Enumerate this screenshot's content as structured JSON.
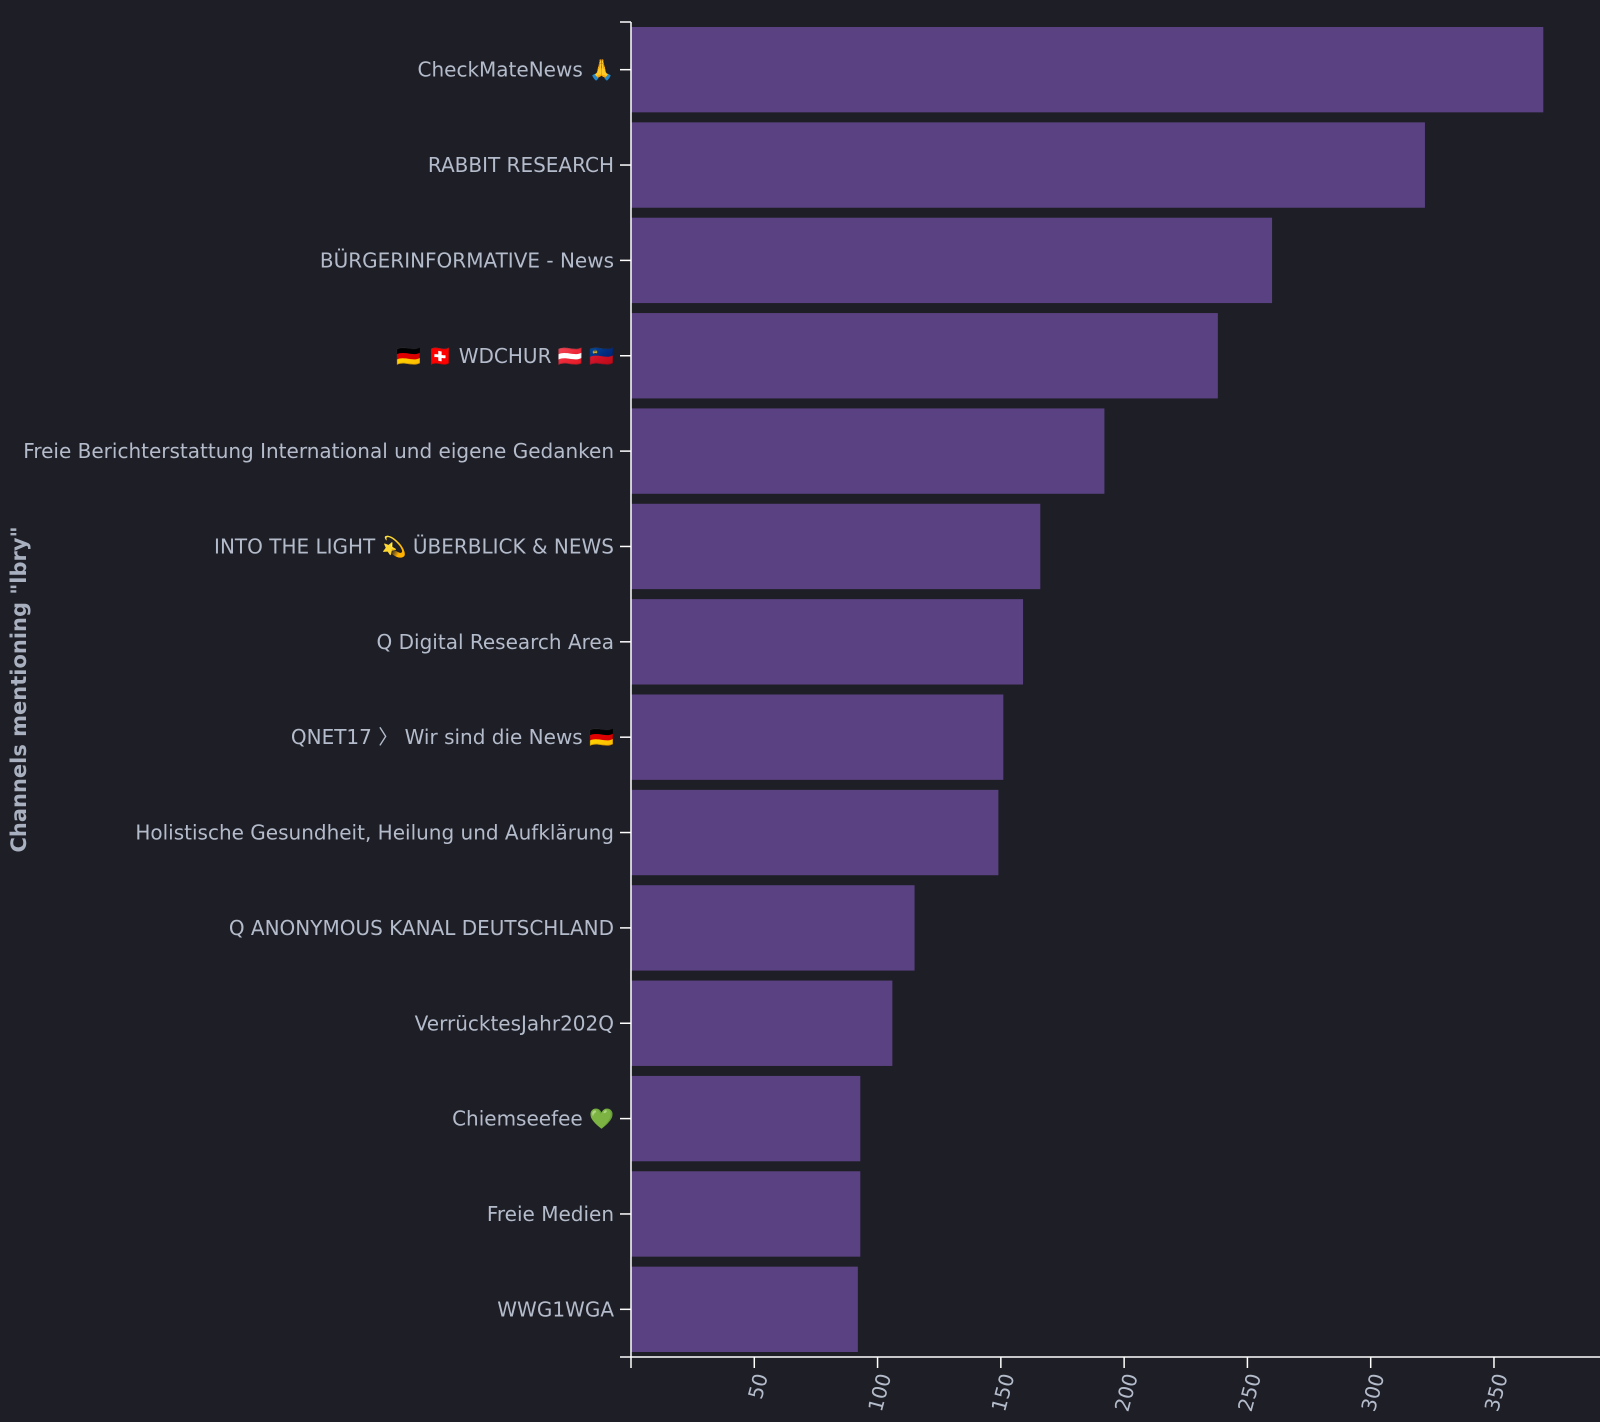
{
  "chart_data": {
    "type": "bar",
    "orientation": "horizontal",
    "categories": [
      "CheckMateNews 🙏",
      "RABBIT RESEARCH",
      "BÜRGERINFORMATIVE - News",
      "🇩🇪 🇨🇭 WDCHUR 🇦🇹 🇱🇮",
      "Freie Berichterstattung International und eigene Gedanken",
      "INTO THE LIGHT 💫 ÜBERBLICK & NEWS",
      "Q Digital Research Area",
      "QNET17 〉 Wir sind die News 🇩🇪",
      "Holistische Gesundheit, Heilung und Aufklärung",
      "Q ANONYMOUS KANAL DEUTSCHLAND",
      "VerrücktesJahr202Q",
      "Chiemseefee 💚",
      "Freie Medien",
      "WWG1WGA"
    ],
    "values": [
      370,
      322,
      260,
      238,
      192,
      166,
      159,
      151,
      149,
      115,
      106,
      93,
      93,
      92
    ],
    "xlabel": "",
    "ylabel": "Channels mentioning \"lbry\"",
    "xlim": [
      0,
      393
    ],
    "xticks": [
      50,
      100,
      150,
      200,
      250,
      300,
      350
    ],
    "grid": false,
    "colors": {
      "bar": "#5a4282",
      "background": "#1e1e26",
      "axis": "#ffffff",
      "tick_text": "#b4bccb",
      "title_text": "#a9b1c0"
    }
  }
}
